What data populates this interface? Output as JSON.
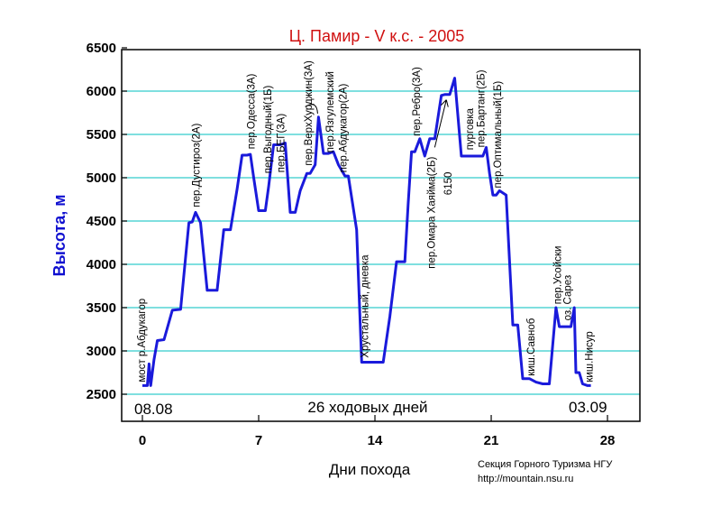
{
  "chart_data": {
    "type": "line",
    "title": "Ц. Памир - V к.с. - 2005",
    "xlabel": "Дни похода",
    "ylabel": "Высота, м",
    "xlim": [
      -0.6,
      30
    ],
    "ylim": [
      2250,
      6500
    ],
    "x_ticks": [
      0,
      7,
      14,
      21,
      28
    ],
    "y_ticks": [
      2500,
      3000,
      3500,
      4000,
      4500,
      5000,
      5500,
      6000,
      6500
    ],
    "grid": "horizontal",
    "line_color": "#1a1adb",
    "grid_color": "#33cccc",
    "title_color": "#d01010",
    "ylabel_color": "#1010d0",
    "series": [
      {
        "x": [
          0,
          0.3,
          0.4,
          0.5,
          0.7,
          0.9,
          1.3,
          1.8,
          2.3,
          2.8,
          3.0,
          3.2,
          3.5,
          3.9,
          4.5,
          4.9,
          5.3,
          5.7,
          6.0,
          6.3,
          6.5,
          6.7,
          7.0,
          7.4,
          7.6,
          7.9,
          8.3,
          8.6,
          8.9,
          9.2,
          9.5,
          9.9,
          10.1,
          10.4,
          10.6,
          10.9,
          11.2,
          11.5,
          11.8,
          12.2,
          12.4,
          12.9,
          13.2,
          13.6,
          14.0,
          14.5,
          14.9,
          15.3,
          15.8,
          16.0,
          16.2,
          16.4,
          16.7,
          17.0,
          17.3,
          17.6,
          18.0,
          18.2,
          18.5,
          18.8,
          19.2,
          19.5,
          19.8,
          20.2,
          20.5,
          20.7,
          20.9,
          21.1,
          21.3,
          21.5,
          21.9,
          22.3,
          22.6,
          22.9,
          23.3,
          23.7,
          24.1,
          24.5,
          24.9,
          25.1,
          25.2,
          25.5,
          25.8,
          26.0,
          26.1,
          26.3,
          26.5,
          26.8,
          27.0
        ],
        "y": [
          2600,
          2600,
          2850,
          2600,
          2900,
          3120,
          3130,
          3470,
          3480,
          4480,
          4490,
          4600,
          4480,
          3700,
          3700,
          4400,
          4400,
          4870,
          5260,
          5260,
          5270,
          5000,
          4620,
          4620,
          4900,
          5380,
          5380,
          5400,
          4600,
          4600,
          4850,
          5050,
          5050,
          5150,
          5700,
          5280,
          5280,
          5300,
          5150,
          5020,
          5020,
          4400,
          2870,
          2870,
          2870,
          2870,
          3400,
          4030,
          4030,
          4700,
          5300,
          5300,
          5450,
          5250,
          5450,
          5450,
          5950,
          5960,
          5960,
          6150,
          5250,
          5250,
          5250,
          5250,
          5250,
          5350,
          5050,
          4800,
          4800,
          4850,
          4800,
          3300,
          3300,
          2680,
          2680,
          2640,
          2620,
          2620,
          3500,
          3280,
          3280,
          3280,
          3280,
          3500,
          2750,
          2750,
          2620,
          2600,
          2600
        ]
      }
    ],
    "annotations": [
      {
        "x": 0.15,
        "y": 2640,
        "text": "мост р.Абдукагор"
      },
      {
        "x": 3.45,
        "y": 4660,
        "text": "пер.Дустироз(2А)"
      },
      {
        "x": 6.75,
        "y": 5330,
        "text": "пер.Одесса(3А)"
      },
      {
        "x": 7.75,
        "y": 5050,
        "text": "пер.Выгодный(1Б)"
      },
      {
        "x": 8.55,
        "y": 5060,
        "text": "пер.БЕГ(3А)"
      },
      {
        "x": 10.2,
        "y": 5140,
        "text": "пер.ВерхХурджин(3А)"
      },
      {
        "x": 11.5,
        "y": 5290,
        "text": "пер.Язгулемский"
      },
      {
        "x": 12.3,
        "y": 5060,
        "text": "пер.Абдукагор(2А)"
      },
      {
        "x": 13.6,
        "y": 2920,
        "text": "Хрустальный, дневка"
      },
      {
        "x": 16.7,
        "y": 5480,
        "text": "пер.Ребро(3А)"
      },
      {
        "x": 17.6,
        "y": 3950,
        "text": "пер.Омара Хаяйма(2Б)"
      },
      {
        "x": 18.6,
        "y": 4800,
        "text": "6150"
      },
      {
        "x": 19.9,
        "y": 5320,
        "text": "пурговка"
      },
      {
        "x": 20.6,
        "y": 5350,
        "text": "пер.Бартанг(2Б)"
      },
      {
        "x": 21.6,
        "y": 4880,
        "text": "пер.Оптимальный(1Б)"
      },
      {
        "x": 23.6,
        "y": 2710,
        "text": "киш.Савноб"
      },
      {
        "x": 25.2,
        "y": 3540,
        "text": "пер.Усойски"
      },
      {
        "x": 25.8,
        "y": 3350,
        "text": "оз. Сарез"
      },
      {
        "x": 27.1,
        "y": 2640,
        "text": "киш.Нисур"
      }
    ],
    "inner_labels": {
      "start_date": "08.08",
      "walking_days": "26 ходовых дней",
      "end_date": "03.09"
    },
    "credits": {
      "line1": "Секция Горного Туризма НГУ",
      "line2": "http://mountain.nsu.ru"
    }
  }
}
